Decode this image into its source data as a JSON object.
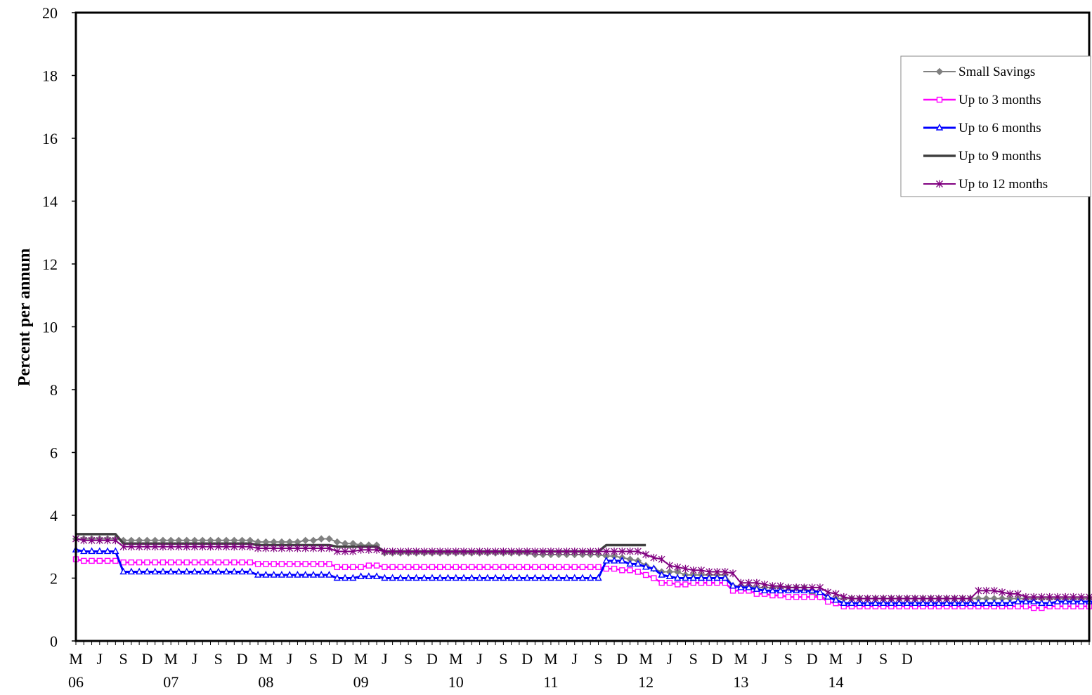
{
  "chart_data": {
    "type": "line",
    "title": "",
    "xlabel": "",
    "ylabel": "Percent per annum",
    "ylim": [
      0,
      20
    ],
    "yticks": [
      "0",
      "2",
      "4",
      "6",
      "8",
      "10",
      "12",
      "14",
      "16",
      "18",
      "20"
    ],
    "x_start": "2006-03",
    "x_month_labels": [
      "M",
      "J",
      "S",
      "D",
      "M",
      "J",
      "S",
      "D",
      "M",
      "J",
      "S",
      "D",
      "M",
      "J",
      "S",
      "D",
      "M",
      "J",
      "S",
      "D",
      "M",
      "J",
      "S",
      "D",
      "M",
      "J",
      "S",
      "D",
      "M",
      "J",
      "S",
      "D",
      "M",
      "J",
      "S",
      "D"
    ],
    "x_year_labels": [
      "06",
      "07",
      "08",
      "09",
      "10",
      "11",
      "12",
      "13",
      "14"
    ],
    "legend_position": "top-right",
    "grid": false,
    "series": [
      {
        "name": "Small Savings",
        "color": "#808080",
        "marker": "diamond",
        "values": [
          3.25,
          3.25,
          3.25,
          3.25,
          3.25,
          3.25,
          3.2,
          3.2,
          3.2,
          3.2,
          3.2,
          3.2,
          3.2,
          3.2,
          3.2,
          3.2,
          3.2,
          3.2,
          3.2,
          3.2,
          3.2,
          3.2,
          3.2,
          3.15,
          3.15,
          3.15,
          3.15,
          3.15,
          3.15,
          3.2,
          3.2,
          3.25,
          3.25,
          3.15,
          3.1,
          3.1,
          3.05,
          3.05,
          3.05,
          2.8,
          2.8,
          2.8,
          2.8,
          2.8,
          2.8,
          2.8,
          2.8,
          2.8,
          2.8,
          2.8,
          2.8,
          2.8,
          2.8,
          2.8,
          2.8,
          2.8,
          2.8,
          2.8,
          2.75,
          2.75,
          2.75,
          2.75,
          2.75,
          2.75,
          2.75,
          2.75,
          2.75,
          2.7,
          2.7,
          2.65,
          2.6,
          2.55,
          2.4,
          2.3,
          2.2,
          2.2,
          2.2,
          2.1,
          2.1,
          2.1,
          2.1,
          2.1,
          2.1,
          1.75,
          1.75,
          1.75,
          1.7,
          1.7,
          1.7,
          1.7,
          1.7,
          1.7,
          1.7,
          1.5,
          1.4,
          1.35,
          1.35,
          1.35,
          1.35,
          1.35,
          1.35,
          1.35,
          1.35,
          1.35,
          1.35,
          1.35,
          1.35,
          1.35,
          1.35,
          1.35,
          1.35,
          1.35,
          1.35,
          1.35,
          1.35,
          1.35,
          1.35,
          1.35,
          1.35,
          1.35,
          1.35,
          1.35,
          1.35,
          1.35,
          1.35,
          1.35,
          1.35,
          1.35,
          1.35
        ]
      },
      {
        "name": "Up to 3 months",
        "color": "#FF00FF",
        "marker": "square",
        "values": [
          2.6,
          2.55,
          2.55,
          2.55,
          2.55,
          2.55,
          2.5,
          2.5,
          2.5,
          2.5,
          2.5,
          2.5,
          2.5,
          2.5,
          2.5,
          2.5,
          2.5,
          2.5,
          2.5,
          2.5,
          2.5,
          2.5,
          2.5,
          2.45,
          2.45,
          2.45,
          2.45,
          2.45,
          2.45,
          2.45,
          2.45,
          2.45,
          2.45,
          2.35,
          2.35,
          2.35,
          2.35,
          2.4,
          2.4,
          2.35,
          2.35,
          2.35,
          2.35,
          2.35,
          2.35,
          2.35,
          2.35,
          2.35,
          2.35,
          2.35,
          2.35,
          2.35,
          2.35,
          2.35,
          2.35,
          2.35,
          2.35,
          2.35,
          2.35,
          2.35,
          2.35,
          2.35,
          2.35,
          2.35,
          2.35,
          2.35,
          2.35,
          2.3,
          2.3,
          2.25,
          2.25,
          2.2,
          2.1,
          2.0,
          1.85,
          1.85,
          1.8,
          1.8,
          1.85,
          1.85,
          1.85,
          1.85,
          1.85,
          1.6,
          1.6,
          1.6,
          1.5,
          1.5,
          1.45,
          1.45,
          1.4,
          1.4,
          1.4,
          1.4,
          1.4,
          1.25,
          1.2,
          1.1,
          1.1,
          1.1,
          1.1,
          1.1,
          1.1,
          1.1,
          1.1,
          1.1,
          1.1,
          1.1,
          1.1,
          1.1,
          1.1,
          1.1,
          1.1,
          1.1,
          1.1,
          1.1,
          1.1,
          1.1,
          1.1,
          1.1,
          1.1,
          1.05,
          1.05,
          1.1,
          1.1,
          1.1,
          1.1,
          1.1,
          1.1,
          1.1
        ]
      },
      {
        "name": "Up to 6 months",
        "color": "#0000FF",
        "marker": "triangle",
        "values": [
          2.9,
          2.85,
          2.85,
          2.85,
          2.85,
          2.85,
          2.2,
          2.2,
          2.2,
          2.2,
          2.2,
          2.2,
          2.2,
          2.2,
          2.2,
          2.2,
          2.2,
          2.2,
          2.2,
          2.2,
          2.2,
          2.2,
          2.2,
          2.1,
          2.1,
          2.1,
          2.1,
          2.1,
          2.1,
          2.1,
          2.1,
          2.1,
          2.1,
          2.0,
          2.0,
          2.0,
          2.05,
          2.05,
          2.05,
          2.0,
          2.0,
          2.0,
          2.0,
          2.0,
          2.0,
          2.0,
          2.0,
          2.0,
          2.0,
          2.0,
          2.0,
          2.0,
          2.0,
          2.0,
          2.0,
          2.0,
          2.0,
          2.0,
          2.0,
          2.0,
          2.0,
          2.0,
          2.0,
          2.0,
          2.0,
          2.0,
          2.0,
          2.55,
          2.55,
          2.55,
          2.45,
          2.45,
          2.35,
          2.3,
          2.1,
          2.05,
          2.0,
          2.0,
          2.0,
          2.0,
          2.0,
          2.0,
          2.0,
          1.75,
          1.7,
          1.7,
          1.65,
          1.6,
          1.6,
          1.6,
          1.6,
          1.6,
          1.6,
          1.6,
          1.55,
          1.4,
          1.3,
          1.2,
          1.2,
          1.2,
          1.2,
          1.2,
          1.2,
          1.2,
          1.2,
          1.2,
          1.2,
          1.2,
          1.2,
          1.2,
          1.2,
          1.2,
          1.2,
          1.2,
          1.2,
          1.2,
          1.2,
          1.2,
          1.2,
          1.25,
          1.25,
          1.25,
          1.2,
          1.2,
          1.25,
          1.25,
          1.25,
          1.25,
          1.25,
          1.25
        ]
      },
      {
        "name": "Up to 9 months",
        "color": "#404040",
        "marker": "none",
        "values": [
          3.4,
          3.4,
          3.4,
          3.4,
          3.4,
          3.4,
          3.1,
          3.1,
          3.1,
          3.1,
          3.1,
          3.1,
          3.1,
          3.1,
          3.1,
          3.1,
          3.1,
          3.1,
          3.1,
          3.1,
          3.1,
          3.1,
          3.1,
          3.05,
          3.05,
          3.05,
          3.05,
          3.05,
          3.05,
          3.05,
          3.05,
          3.05,
          3.05,
          3.0,
          3.0,
          3.0,
          3.0,
          3.0,
          3.0,
          2.85,
          2.85,
          2.85,
          2.85,
          2.85,
          2.85,
          2.85,
          2.85,
          2.85,
          2.85,
          2.85,
          2.85,
          2.85,
          2.85,
          2.85,
          2.85,
          2.85,
          2.85,
          2.85,
          2.85,
          2.85,
          2.85,
          2.85,
          2.85,
          2.85,
          2.85,
          2.85,
          2.85,
          3.05,
          3.05,
          3.05,
          3.05,
          3.05,
          3.05,
          null,
          null,
          null,
          null,
          null,
          null,
          null,
          null,
          null,
          null,
          null,
          null,
          null,
          null,
          null,
          null,
          null,
          null,
          null,
          null,
          null,
          null,
          null,
          null,
          null,
          null,
          null,
          null,
          null,
          null,
          null,
          null,
          null,
          null,
          null,
          null,
          null,
          null,
          null,
          null,
          null,
          null,
          null,
          null,
          null,
          null,
          null,
          null,
          null,
          null,
          null,
          null,
          null,
          null,
          null,
          null,
          null,
          null,
          null,
          null
        ]
      },
      {
        "name": "Up to 12 months",
        "color": "#800080",
        "marker": "star",
        "values": [
          3.25,
          3.2,
          3.2,
          3.2,
          3.2,
          3.2,
          3.0,
          3.0,
          3.0,
          3.0,
          3.0,
          3.0,
          3.0,
          3.0,
          3.0,
          3.0,
          3.0,
          3.0,
          3.0,
          3.0,
          3.0,
          3.0,
          3.0,
          2.95,
          2.95,
          2.95,
          2.95,
          2.95,
          2.95,
          2.95,
          2.95,
          2.95,
          2.95,
          2.85,
          2.85,
          2.85,
          2.9,
          2.9,
          2.9,
          2.85,
          2.85,
          2.85,
          2.85,
          2.85,
          2.85,
          2.85,
          2.85,
          2.85,
          2.85,
          2.85,
          2.85,
          2.85,
          2.85,
          2.85,
          2.85,
          2.85,
          2.85,
          2.85,
          2.85,
          2.85,
          2.85,
          2.85,
          2.85,
          2.85,
          2.85,
          2.85,
          2.85,
          2.85,
          2.85,
          2.85,
          2.85,
          2.85,
          2.75,
          2.65,
          2.6,
          2.4,
          2.35,
          2.3,
          2.25,
          2.25,
          2.2,
          2.2,
          2.2,
          2.15,
          1.85,
          1.85,
          1.85,
          1.8,
          1.75,
          1.75,
          1.7,
          1.7,
          1.7,
          1.7,
          1.7,
          1.55,
          1.5,
          1.4,
          1.35,
          1.35,
          1.35,
          1.35,
          1.35,
          1.35,
          1.35,
          1.35,
          1.35,
          1.35,
          1.35,
          1.35,
          1.35,
          1.35,
          1.35,
          1.35,
          1.6,
          1.6,
          1.6,
          1.55,
          1.5,
          1.5,
          1.4,
          1.4,
          1.4,
          1.4,
          1.4,
          1.4,
          1.4,
          1.4,
          1.4,
          1.4,
          1.4,
          1.4
        ]
      }
    ]
  }
}
